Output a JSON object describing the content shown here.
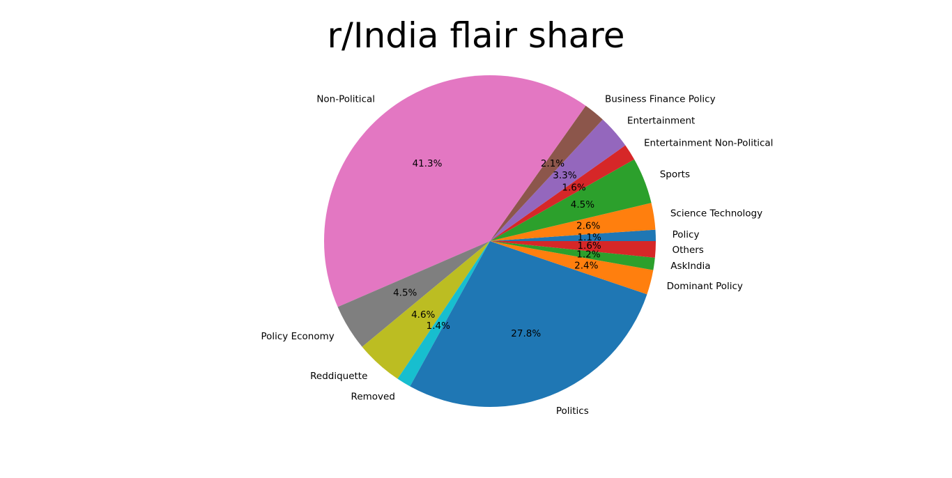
{
  "chart_data": {
    "type": "pie",
    "title": "r/India flair share",
    "slices": [
      {
        "label": "Policy",
        "value": 1.1,
        "pct_label": "1.1%",
        "color": "#1f77b4"
      },
      {
        "label": "Science Technology",
        "value": 2.6,
        "pct_label": "2.6%",
        "color": "#ff7f0e"
      },
      {
        "label": "Sports",
        "value": 4.5,
        "pct_label": "4.5%",
        "color": "#2ca02c"
      },
      {
        "label": "Entertainment Non-Political",
        "value": 1.6,
        "pct_label": "1.6%",
        "color": "#d62728"
      },
      {
        "label": "Entertainment",
        "value": 3.3,
        "pct_label": "3.3%",
        "color": "#9467bd"
      },
      {
        "label": "Business Finance Policy",
        "value": 2.1,
        "pct_label": "2.1%",
        "color": "#8c564b"
      },
      {
        "label": "Non-Political",
        "value": 41.3,
        "pct_label": "41.3%",
        "color": "#e377c2"
      },
      {
        "label": "Policy Economy",
        "value": 4.5,
        "pct_label": "4.5%",
        "color": "#7f7f7f"
      },
      {
        "label": "Reddiquette",
        "value": 4.6,
        "pct_label": "4.6%",
        "color": "#bcbd22"
      },
      {
        "label": "Removed",
        "value": 1.4,
        "pct_label": "1.4%",
        "color": "#17becf"
      },
      {
        "label": "Politics",
        "value": 27.8,
        "pct_label": "27.8%",
        "color": "#1f77b4"
      },
      {
        "label": "Dominant Policy",
        "value": 2.4,
        "pct_label": "2.4%",
        "color": "#ff7f0e"
      },
      {
        "label": "AskIndia",
        "value": 1.2,
        "pct_label": "1.2%",
        "color": "#2ca02c"
      },
      {
        "label": "Others",
        "value": 1.6,
        "pct_label": "1.6%",
        "color": "#d62728"
      }
    ],
    "start_angle_deg": 0,
    "direction": "counterclockwise",
    "legend": "none"
  }
}
